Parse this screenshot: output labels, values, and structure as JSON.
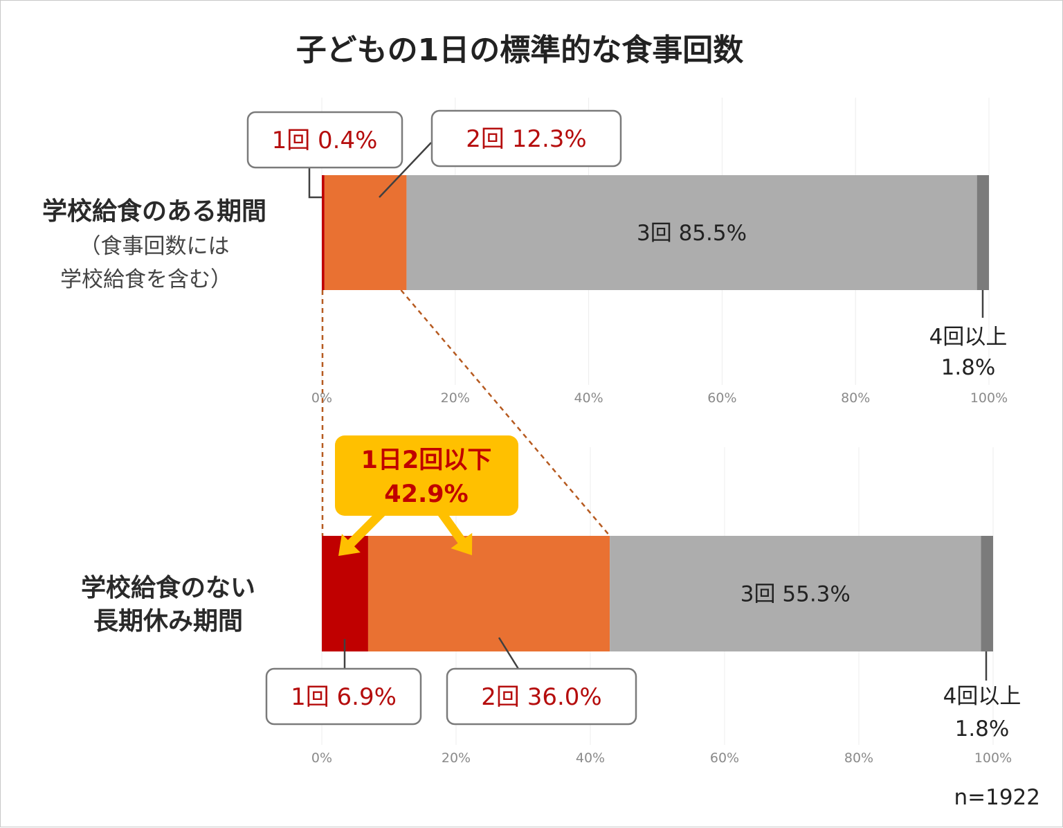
{
  "title": "子どもの1日の標準的な食事回数",
  "sample_size": "n=1922",
  "colors": {
    "once": "#c00000",
    "twice": "#e97132",
    "three": "#adadad",
    "four_plus": "#7b7b7b",
    "highlight": "#ffc000",
    "connector": "#b65a20"
  },
  "highlight": {
    "line1": "1日2回以下",
    "line2": "42.9%"
  },
  "chart_data": {
    "type": "bar",
    "stacked": true,
    "orientation": "horizontal",
    "xlim": [
      0,
      100
    ],
    "x_ticks": [
      "0%",
      "20%",
      "40%",
      "60%",
      "80%",
      "100%"
    ],
    "grid": true,
    "panels": [
      {
        "category": "学校給食のある期間",
        "note_lines": [
          "（食事回数には",
          "学校給食を含む）"
        ],
        "segments": [
          {
            "name": "1回",
            "value": 0.4,
            "label": "1回  0.4%"
          },
          {
            "name": "2回",
            "value": 12.3,
            "label": "2回  12.3%"
          },
          {
            "name": "3回",
            "value": 85.5,
            "label": "3回  85.5%"
          },
          {
            "name": "4回以上",
            "value": 1.8,
            "label_lines": [
              "4回以上",
              "1.8%"
            ]
          }
        ]
      },
      {
        "category_lines": [
          "学校給食のない",
          "長期休み期間"
        ],
        "segments": [
          {
            "name": "1回",
            "value": 6.9,
            "label": "1回  6.9%"
          },
          {
            "name": "2回",
            "value": 36.0,
            "label": "2回  36.0%"
          },
          {
            "name": "3回",
            "value": 55.3,
            "label": "3回  55.3%"
          },
          {
            "name": "4回以上",
            "value": 1.8,
            "label_lines": [
              "4回以上",
              "1.8%"
            ]
          }
        ]
      }
    ]
  }
}
